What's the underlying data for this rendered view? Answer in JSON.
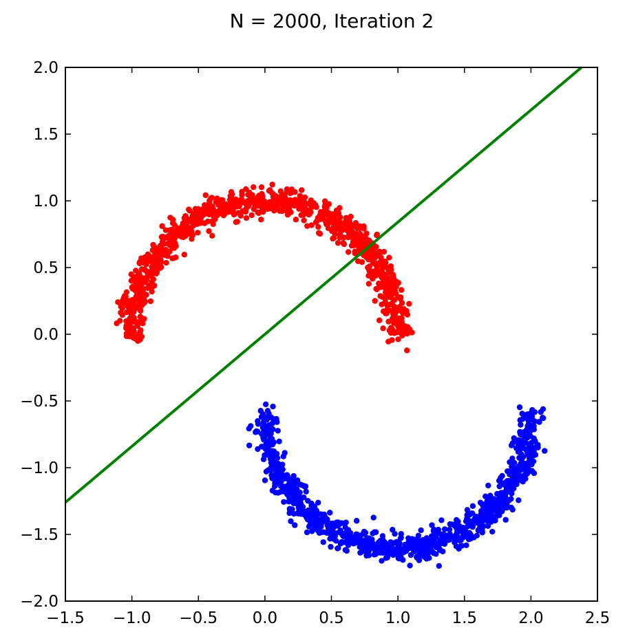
{
  "chart_data": {
    "type": "scatter",
    "title": "N = 2000, Iteration 2",
    "xlabel": "",
    "ylabel": "",
    "xlim": [
      -1.5,
      2.5
    ],
    "ylim": [
      -2.0,
      2.0
    ],
    "xticks": [
      -1.5,
      -1.0,
      -0.5,
      0.0,
      0.5,
      1.0,
      1.5,
      2.0,
      2.5
    ],
    "xtick_labels": [
      "−1.5",
      "−1.0",
      "−0.5",
      "0.0",
      "0.5",
      "1.0",
      "1.5",
      "2.0",
      "2.5"
    ],
    "yticks": [
      2.0,
      1.5,
      1.0,
      0.5,
      0.0,
      -0.5,
      -1.0,
      -1.5,
      -2.0
    ],
    "ytick_labels": [
      "2.0",
      "1.5",
      "1.0",
      "0.5",
      "0.0",
      "−0.5",
      "−1.0",
      "−1.5",
      "−2.0"
    ],
    "grid": false,
    "series": [
      {
        "kind": "moon",
        "color": "#ff0000",
        "center": [
          0.0,
          0.0
        ],
        "radius": 1.0,
        "angle_range_deg": [
          0,
          180
        ],
        "noise": 0.05,
        "count": 1000
      },
      {
        "kind": "moon",
        "color": "#0000ff",
        "center": [
          1.0,
          -0.6
        ],
        "radius": 1.0,
        "angle_range_deg": [
          180,
          360
        ],
        "noise": 0.05,
        "count": 1000
      }
    ],
    "decision_boundary": {
      "color": "#008000",
      "points": [
        [
          -1.5,
          -1.26
        ],
        [
          2.38,
          2.0
        ]
      ]
    }
  }
}
